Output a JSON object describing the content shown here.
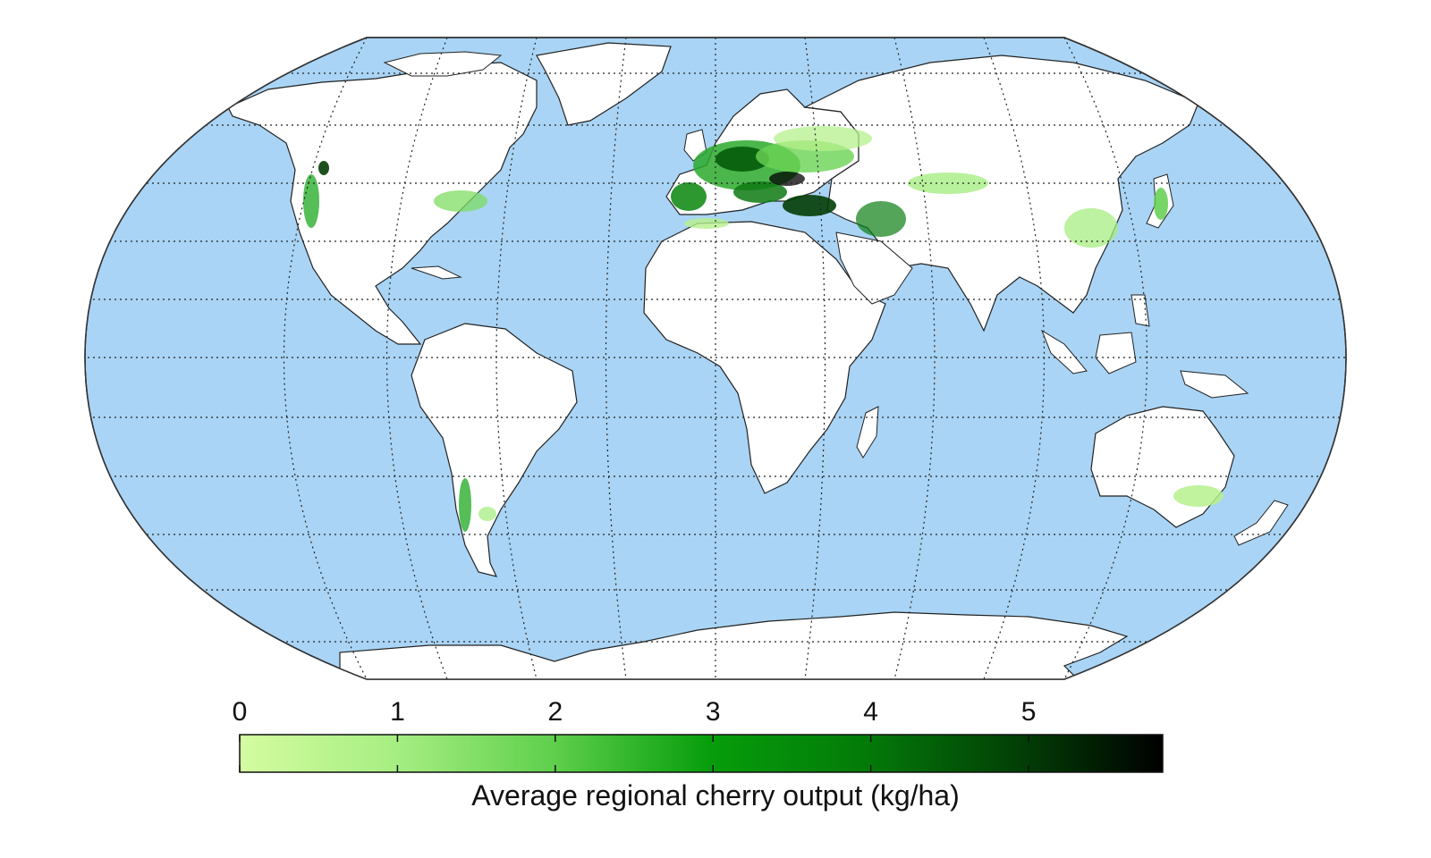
{
  "map": {
    "ocean_color": "#a9d4f5",
    "land_color": "#ffffff",
    "coast_color": "#222222",
    "graticule": "dotted",
    "hotspots": [
      {
        "region": "Europe",
        "level": 4.5
      },
      {
        "region": "Turkey",
        "level": 5.0
      },
      {
        "region": "Iberia",
        "level": 4.0
      },
      {
        "region": "Ukraine",
        "level": 3.0
      },
      {
        "region": "Central Asia",
        "level": 1.5
      },
      {
        "region": "China",
        "level": 1.2
      },
      {
        "region": "Japan",
        "level": 2.0
      },
      {
        "region": "US West Coast",
        "level": 3.0
      },
      {
        "region": "US East",
        "level": 1.5
      },
      {
        "region": "Chile",
        "level": 2.0
      },
      {
        "region": "SE Australia",
        "level": 1.0
      }
    ]
  },
  "legend": {
    "title": "Average regional cherry output (kg/ha)",
    "ticks": [
      "0",
      "1",
      "2",
      "3",
      "4",
      "5"
    ],
    "min": 0,
    "max": 5.85,
    "colors": [
      "#d4fca0",
      "#7fdc62",
      "#36b83a",
      "#009a05",
      "#045c0a",
      "#000000"
    ]
  }
}
